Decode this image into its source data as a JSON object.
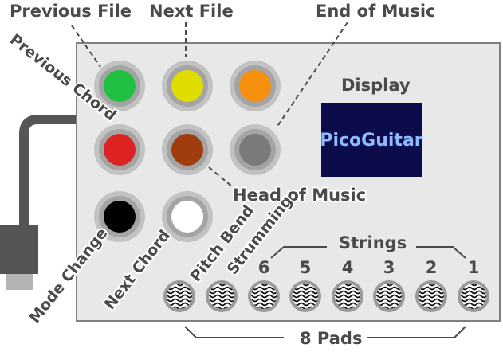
{
  "labels": {
    "previous_file": "Previous File",
    "next_file": "Next File",
    "end_of_music": "End of Music",
    "previous_chord": "Previous Chord",
    "head_of_music": "Head of Music",
    "mode_change": "Mode Change",
    "next_chord": "Next Chord",
    "pitch_bend": "Pitch Bend",
    "strumming": "Strumming",
    "display": "Display",
    "strings": "Strings",
    "eight_pads": "8 Pads"
  },
  "display_screen": {
    "text": "PicoGuitar",
    "bg": "#0c0c4a",
    "fg": "#8fb8ff"
  },
  "string_numbers": [
    "6",
    "5",
    "4",
    "3",
    "2",
    "1"
  ],
  "buttons": [
    {
      "name": "previous-file-button",
      "color": "#22c040"
    },
    {
      "name": "next-file-button",
      "color": "#e0dc00"
    },
    {
      "name": "end-of-music-button",
      "color": "#f5900e"
    },
    {
      "name": "previous-chord-button",
      "color": "#dd2222"
    },
    {
      "name": "head-of-music-button",
      "color": "#a13c0c"
    },
    {
      "name": "next-chord-display-button",
      "color": "#7a7a7a"
    },
    {
      "name": "mode-change-button",
      "color": "#000000"
    },
    {
      "name": "next-chord-button",
      "color": "#ffffff"
    }
  ],
  "colors": {
    "board": "#e8e8e8",
    "border": "#808080",
    "text": "#4a4a4a",
    "cable": "#555555"
  }
}
